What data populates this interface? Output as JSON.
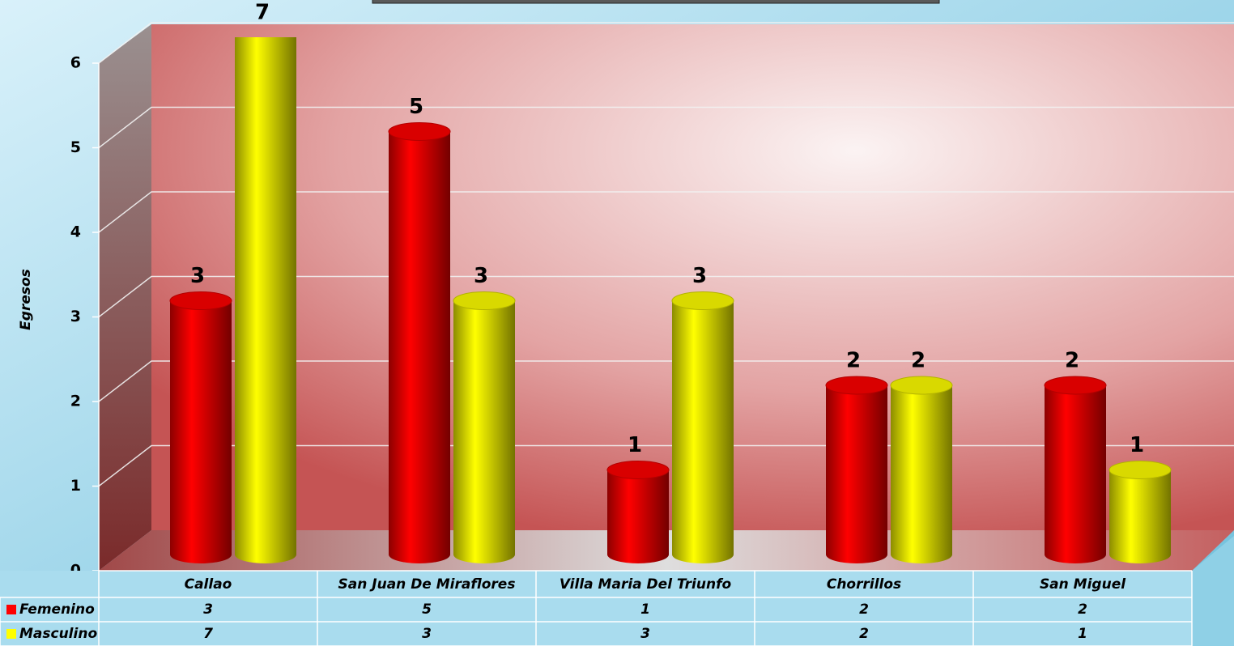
{
  "chart_data": {
    "type": "bar3d",
    "y_label": "Egresos",
    "categories": [
      "Callao",
      "San Juan De Miraflores",
      "Villa Maria Del Triunfo",
      "Chorrillos",
      "San Miguel"
    ],
    "series": [
      {
        "name": "Femenino",
        "color": "#ff0000",
        "values": [
          3,
          5,
          1,
          2,
          2
        ]
      },
      {
        "name": "Masculino",
        "color": "#ffff00",
        "values": [
          7,
          3,
          3,
          2,
          1
        ]
      }
    ],
    "ylim": [
      0,
      6
    ],
    "yticks": [
      0,
      1,
      2,
      3,
      4,
      5,
      6
    ],
    "grid": true,
    "data_table": true
  }
}
